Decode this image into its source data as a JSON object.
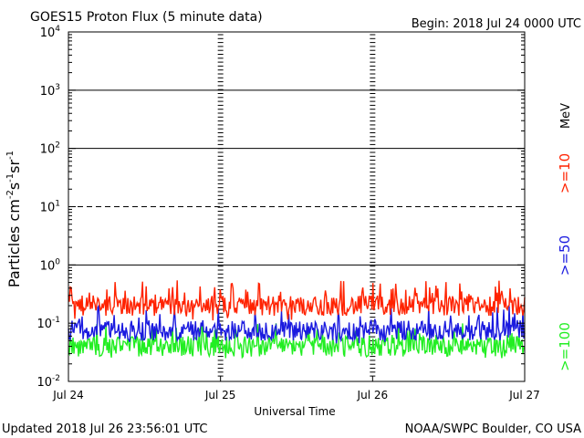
{
  "header": {
    "title": "GOES15 Proton Flux (5 minute data)",
    "begin": "Begin: 2018 Jul 24 0000 UTC"
  },
  "footer": {
    "updated": "Updated 2018 Jul 26 23:56:01 UTC",
    "source": "NOAA/SWPC Boulder, CO USA"
  },
  "legend": {
    "unit": "MeV",
    "entries": [
      {
        "label": ">=10",
        "color": "#ff2200"
      },
      {
        "label": ">=50",
        "color": "#1a1adf"
      },
      {
        "label": ">=100",
        "color": "#22ee22"
      }
    ]
  },
  "chart_data": {
    "type": "line",
    "title": "GOES15 Proton Flux (5 minute data)",
    "xlabel": "Universal Time",
    "ylabel": "Particles cm⁻²s⁻¹sr⁻¹",
    "yscale": "log",
    "ylim": [
      0.01,
      10000
    ],
    "xlim_days": [
      0,
      3
    ],
    "x_ticks": [
      "Jul 24",
      "Jul 25",
      "Jul 26",
      "Jul 27"
    ],
    "y_ticks": [
      {
        "base": "10",
        "exp": "-2"
      },
      {
        "base": "10",
        "exp": "-1"
      },
      {
        "base": "10",
        "exp": "0"
      },
      {
        "base": "10",
        "exp": "1"
      },
      {
        "base": "10",
        "exp": "2"
      },
      {
        "base": "10",
        "exp": "3"
      },
      {
        "base": "10",
        "exp": "4"
      }
    ],
    "reference_lines": [
      {
        "y": 1,
        "style": "solid"
      },
      {
        "y": 10,
        "style": "dashed"
      },
      {
        "y": 100,
        "style": "solid"
      },
      {
        "y": 1000,
        "style": "solid"
      }
    ],
    "grid": "day-boundary tick columns",
    "series": [
      {
        "name": ">=10 MeV",
        "color": "#ff2200",
        "typical": 0.2,
        "min": 0.11,
        "max": 0.55
      },
      {
        "name": ">=50 MeV",
        "color": "#1a1adf",
        "typical": 0.075,
        "min": 0.045,
        "max": 0.2
      },
      {
        "name": ">=100 MeV",
        "color": "#22ee22",
        "typical": 0.04,
        "min": 0.025,
        "max": 0.1
      }
    ]
  }
}
